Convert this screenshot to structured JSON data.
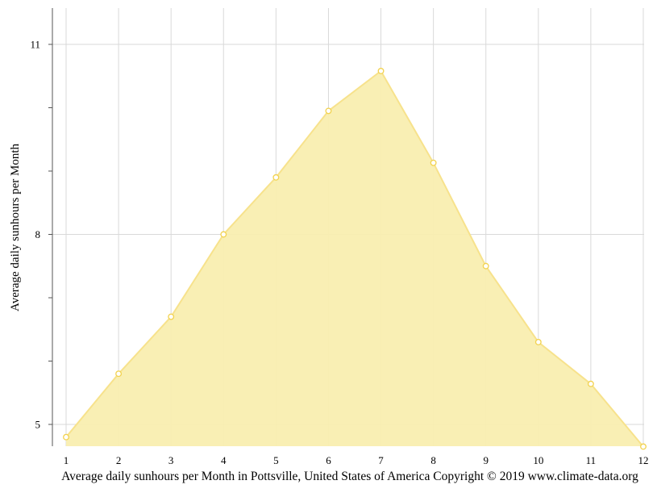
{
  "chart_data": {
    "type": "area",
    "x": [
      1,
      2,
      3,
      4,
      5,
      6,
      7,
      8,
      9,
      10,
      11,
      12
    ],
    "series": [
      {
        "values": [
          4.8,
          5.8,
          6.7,
          8.0,
          8.9,
          9.95,
          10.58,
          9.13,
          7.5,
          6.3,
          5.64,
          4.65
        ]
      }
    ],
    "xticks": [
      "1",
      "2",
      "3",
      "4",
      "5",
      "6",
      "7",
      "8",
      "9",
      "10",
      "11",
      "12"
    ],
    "yticks": [
      5,
      8,
      11
    ],
    "ylim": [
      4.65,
      11.55
    ],
    "xlim": [
      1,
      12
    ],
    "ylabel": "Average daily sunhours per Month",
    "caption": "Average daily sunhours per Month in Pottsville, United States of America Copyright © 2019 www.climate-data.org",
    "grid": true,
    "colors": {
      "fill": "#f9eeb0",
      "line": "#f7e28c",
      "marker_fill": "#ffffff",
      "marker_stroke": "#f2d24e",
      "grid": "#d9d9d9",
      "axis": "#555555"
    }
  }
}
